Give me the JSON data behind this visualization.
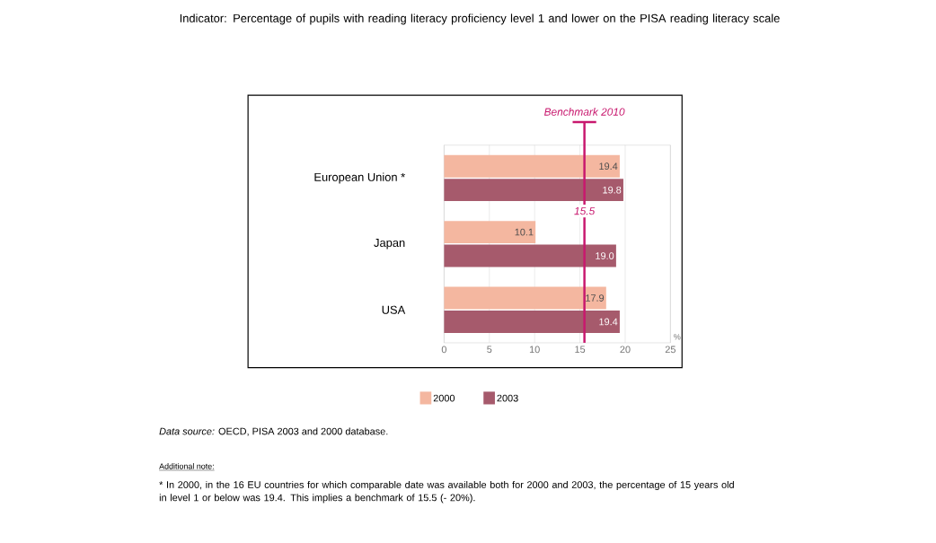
{
  "chart_data": {
    "type": "bar",
    "orientation": "horizontal",
    "title": "Indicator: Percentage of pupils with reading literacy proficiency level 1 and lower on the PISA reading literacy scale",
    "xlabel": "%",
    "categories": [
      "European Union *",
      "Japan",
      "USA"
    ],
    "series": [
      {
        "name": "2000",
        "color": "#f4b7a0",
        "values": [
          19.4,
          10.1,
          17.9
        ],
        "value_labels": [
          "19.4",
          "10.1",
          "17.9"
        ]
      },
      {
        "name": "2003",
        "color": "#a65a6c",
        "values": [
          19.8,
          19.0,
          19.4
        ],
        "value_labels": [
          "19.8",
          "19.0",
          "19.4"
        ]
      }
    ],
    "xlim": [
      0,
      25
    ],
    "xticks": [
      0,
      5,
      10,
      15,
      20,
      25
    ],
    "grid": "x",
    "legend": "bottom",
    "ref_lines": [
      {
        "axis": "x",
        "value": 15.5,
        "label": "Benchmark 2010",
        "color": "#c8186e"
      }
    ],
    "annotations": [
      {
        "text": "15.5",
        "x": 15.5
      },
      "*Data source:* OECD, PISA 2003 and 2000 database.",
      "Additional note:",
      "* In 2000, in the 16 EU countries for which comparable date was available both for 2000 and 2003, the percentage of 15 years old in level 1 or below was 19.4. This implies a benchmark of 15.5 (- 20%)."
    ]
  }
}
